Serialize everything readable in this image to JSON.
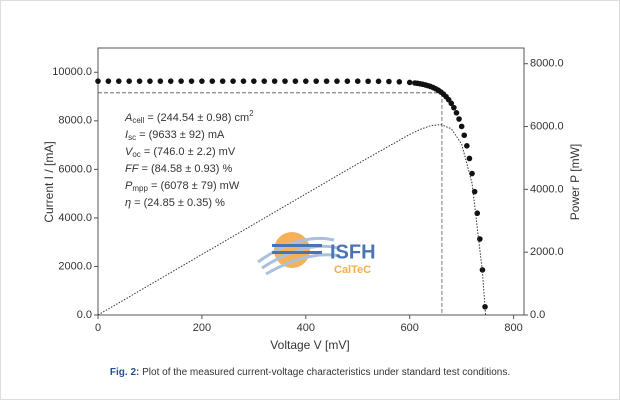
{
  "chart_data": {
    "type": "scatter",
    "xlabel": "Voltage V [mV]",
    "ylabel": "Current I / [mA]",
    "y2label": "Power P [mW]",
    "xlim": [
      0,
      820
    ],
    "xticks": [
      0,
      200,
      400,
      600,
      800
    ],
    "ylim": [
      0,
      11000
    ],
    "yticks": [
      {
        "value": 0,
        "label": "0.0"
      },
      {
        "value": 2000,
        "label": "2000.0"
      },
      {
        "value": 4000,
        "label": "4000.0"
      },
      {
        "value": 6000,
        "label": "6000.0"
      },
      {
        "value": 8000,
        "label": "8000.0"
      },
      {
        "value": 10000,
        "label": "10000.0"
      }
    ],
    "y2lim": [
      0,
      8500
    ],
    "y2ticks": [
      {
        "value": 0,
        "label": "0.0"
      },
      {
        "value": 2000,
        "label": "2000.0"
      },
      {
        "value": 4000,
        "label": "4000.0"
      },
      {
        "value": 6000,
        "label": "6000.0"
      },
      {
        "value": 8000,
        "label": "8000.0"
      }
    ],
    "series": [
      {
        "color": "#111111",
        "x": [
          0,
          20,
          40,
          60,
          80,
          100,
          120,
          140,
          160,
          180,
          200,
          220,
          240,
          260,
          280,
          300,
          320,
          340,
          360,
          380,
          400,
          420,
          440,
          460,
          480,
          500,
          520,
          540,
          560,
          580,
          600,
          610,
          615,
          620,
          625,
          630,
          635,
          640,
          645,
          650,
          655,
          660,
          665,
          670,
          675,
          680,
          685,
          690,
          695,
          700,
          705,
          710,
          715,
          720,
          725,
          730,
          735,
          740,
          745
        ],
        "values": [
          9633,
          9633,
          9633,
          9633,
          9633,
          9633,
          9633,
          9633,
          9633,
          9633,
          9633,
          9633,
          9633,
          9633,
          9633,
          9633,
          9633,
          9633,
          9633,
          9633,
          9633,
          9633,
          9633,
          9633,
          9633,
          9632,
          9630,
          9627,
          9620,
          9607,
          9581,
          9558,
          9544,
          9526,
          9505,
          9480,
          9450,
          9415,
          9372,
          9321,
          9260,
          9186,
          9099,
          8995,
          8870,
          8721,
          8543,
          8330,
          8074,
          7770,
          7405,
          6970,
          6449,
          5827,
          5082,
          4193,
          3130,
          1858,
          338
        ]
      },
      {
        "color": "#333333",
        "axis": "y2",
        "x": [
          0,
          100,
          200,
          300,
          400,
          500,
          600,
          620,
          640,
          660,
          680,
          700,
          720,
          740,
          746
        ],
        "values": [
          0,
          963,
          1927,
          2890,
          3853,
          4816,
          5749,
          5906,
          6026,
          6063,
          5930,
          5439,
          4195,
          1375,
          0
        ]
      }
    ],
    "mpp": {
      "x": 662,
      "y": 9153
    },
    "annotations": [
      {
        "symbol": "A",
        "sub": "cell",
        "text": " = (244.54 ± 0.98) cm",
        "sup": "2"
      },
      {
        "symbol": "I",
        "sub": "sc",
        "text": " = (9633 ± 92) mA"
      },
      {
        "symbol": "V",
        "sub": "oc",
        "text": " = (746.0 ± 2.2) mV"
      },
      {
        "symbol": "FF",
        "text": " = (84.58 ± 0.93) %"
      },
      {
        "symbol": "P",
        "sub": "mpp",
        "text": " = (6078 ± 79) mW"
      },
      {
        "symbol": "η",
        "text": " = (24.85 ± 0.35) %"
      }
    ],
    "logo": {
      "name": "ISFH",
      "sub": "CalTeC"
    },
    "caption": {
      "label": "Fig. 2:",
      "text": " Plot of the measured current-voltage characteristics under standard test conditions."
    }
  }
}
